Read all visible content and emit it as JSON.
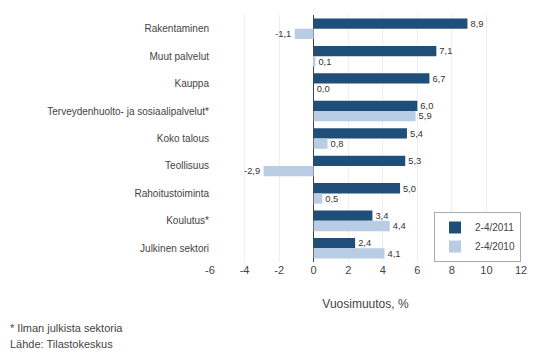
{
  "chart_data": {
    "type": "bar",
    "orientation": "horizontal",
    "categories": [
      "Rakentaminen",
      "Muut palvelut",
      "Kauppa",
      "Terveydenhuolto- ja sosiaalipalvelut*",
      "Koko talous",
      "Teollisuus",
      "Rahoitustoiminta",
      "Koulutus*",
      "Julkinen sektori"
    ],
    "series": [
      {
        "name": "2-4/2011",
        "color": "#1F4E79",
        "values": [
          8.9,
          7.1,
          6.7,
          6.0,
          5.4,
          5.3,
          5.0,
          3.4,
          2.4
        ],
        "value_labels": [
          "8,9",
          "7,1",
          "6,7",
          "6,0",
          "5,4",
          "5,3",
          "5,0",
          "3,4",
          "2,4"
        ]
      },
      {
        "name": "2-4/2010",
        "color": "#B8CCE4",
        "values": [
          -1.1,
          0.1,
          0.0,
          5.9,
          0.8,
          -2.9,
          0.5,
          4.4,
          4.1
        ],
        "value_labels": [
          "-1,1",
          "0,1",
          "0,0",
          "5,9",
          "0,8",
          "-2,9",
          "0,5",
          "4,4",
          "4,1"
        ]
      }
    ],
    "xlabel": "Vuosimuutos, %",
    "xlim": [
      -6,
      12
    ],
    "xticks": [
      -6,
      -4,
      -2,
      0,
      2,
      4,
      6,
      8,
      10,
      12
    ],
    "grid": true,
    "legend": "lower right",
    "data_labels": true,
    "annotations": [
      "* Ilman julkista sektoria",
      "Lähde: Tilastokeskus"
    ]
  }
}
